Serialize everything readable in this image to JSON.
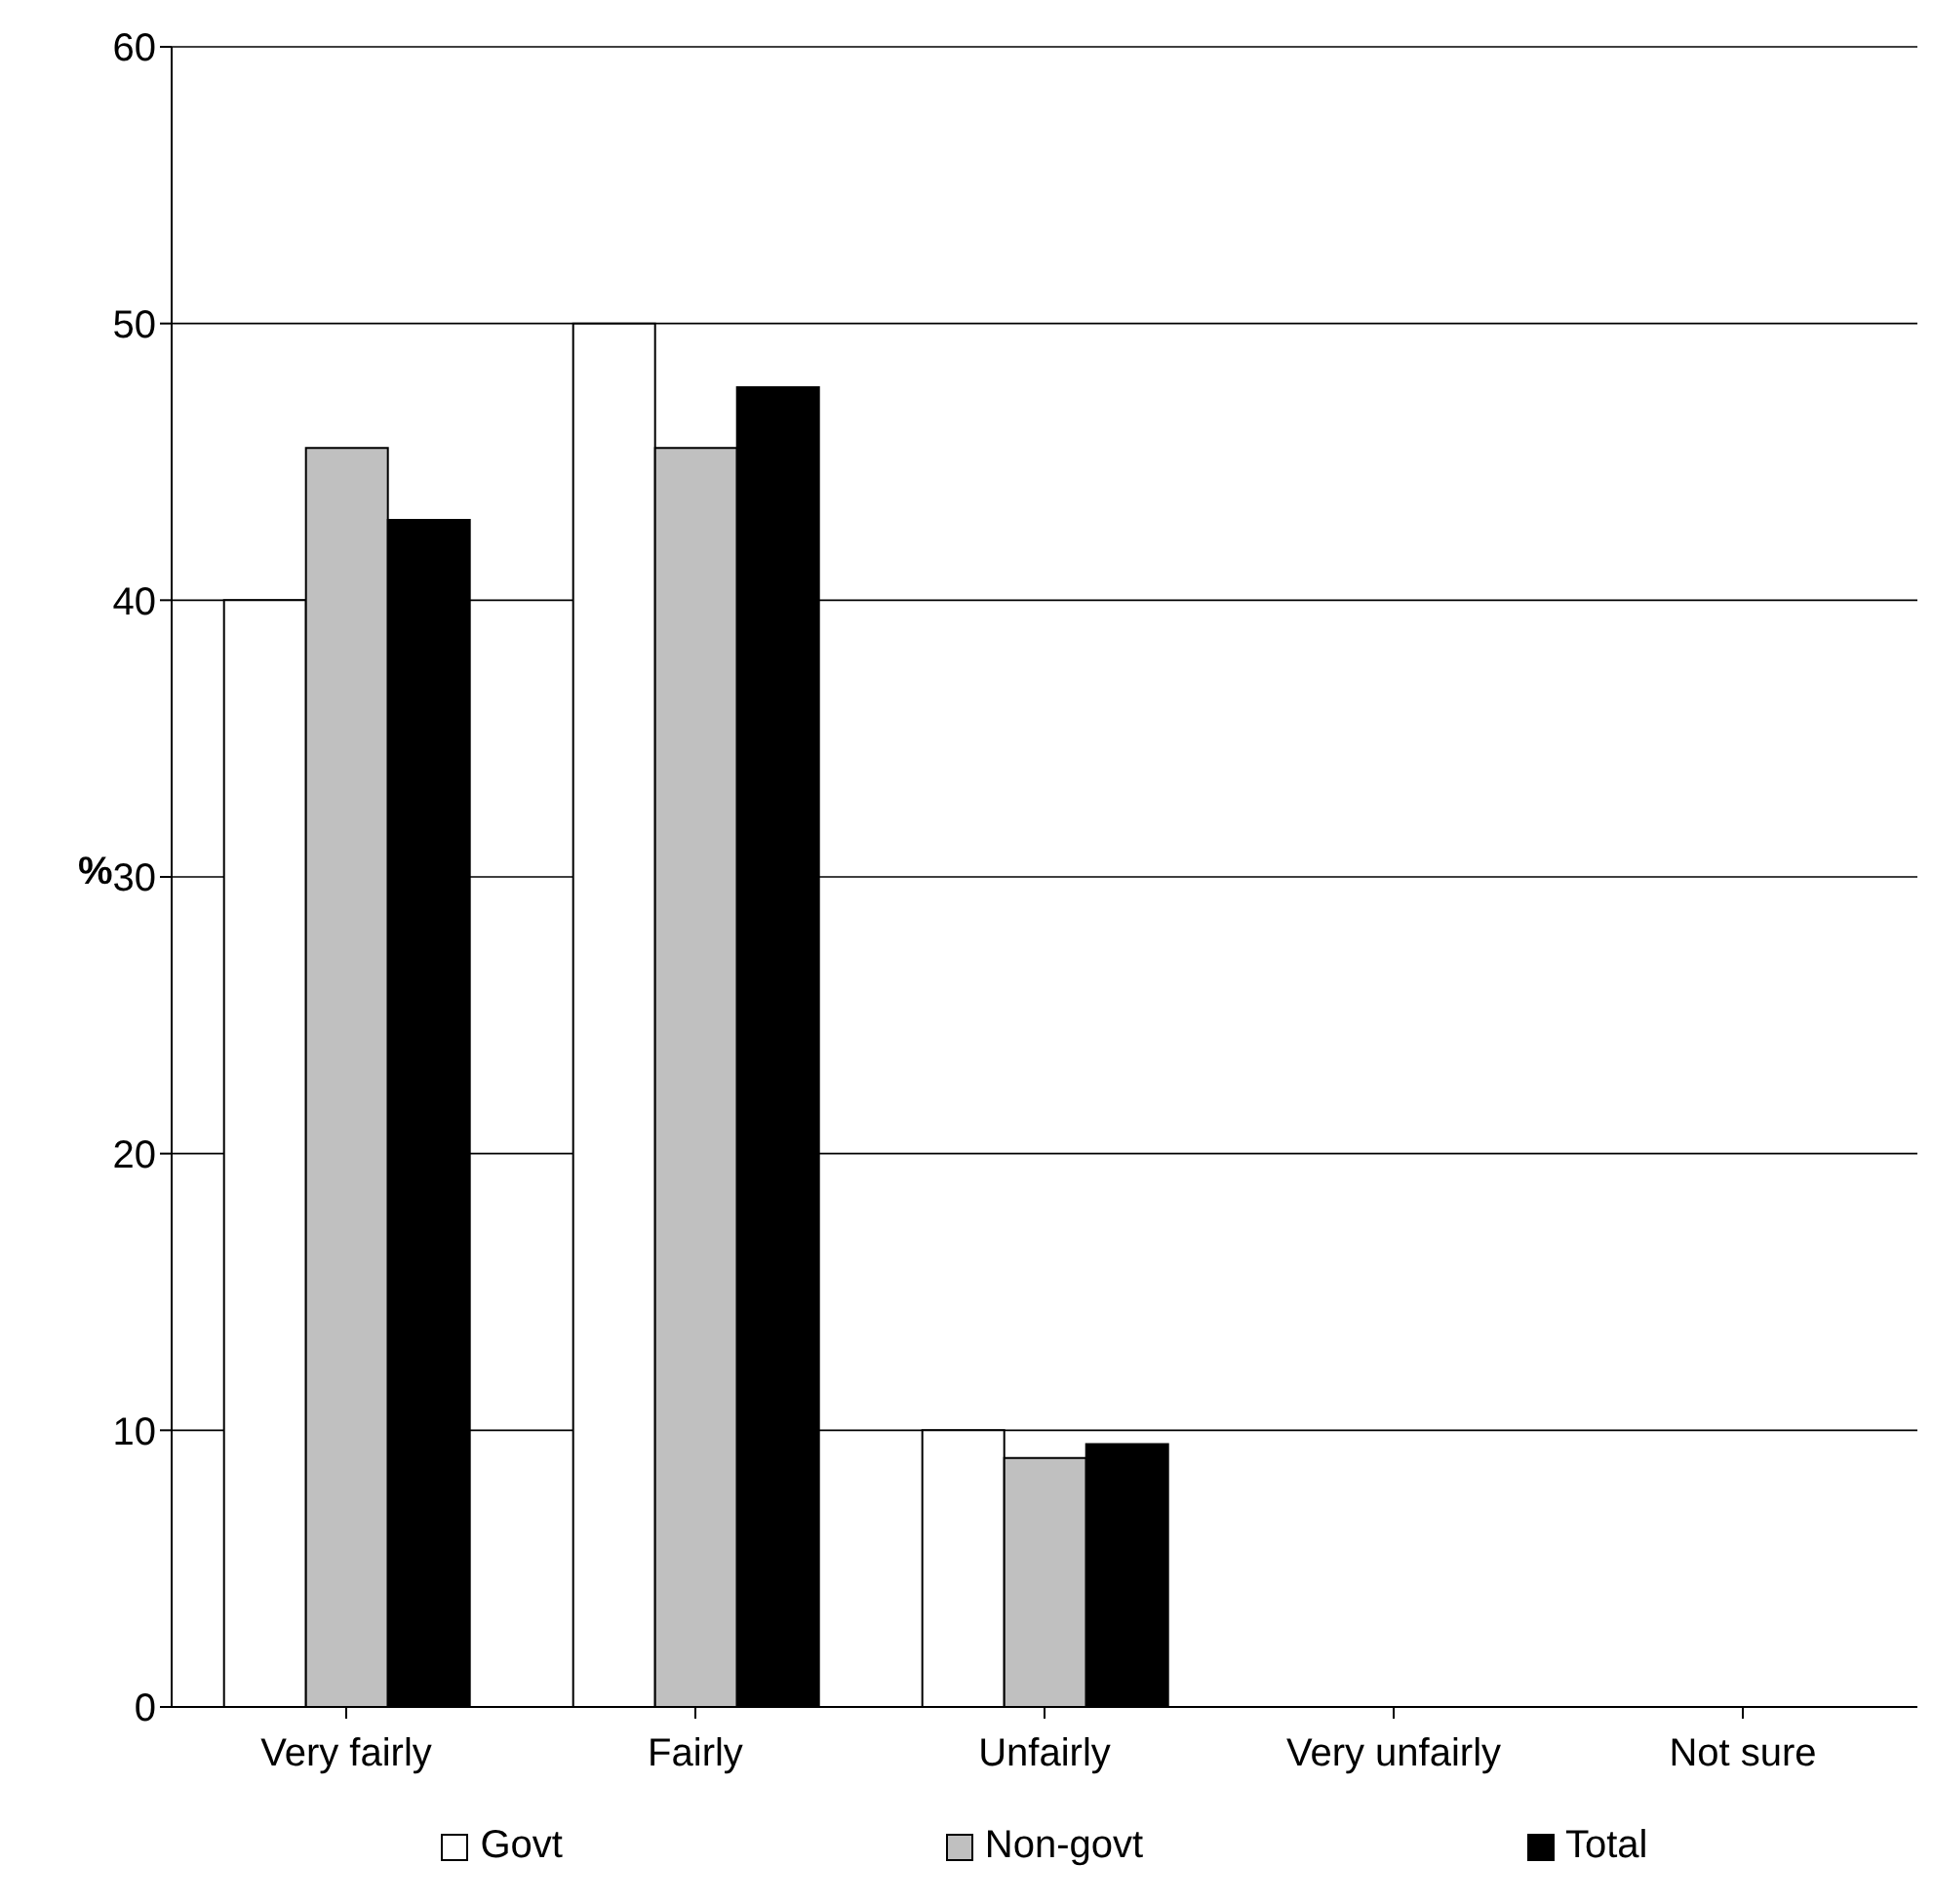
{
  "chart_data": {
    "type": "bar",
    "ylabel": "%",
    "categories": [
      "Very fairly",
      "Fairly",
      "Unfairly",
      "Very unfairly",
      "Not sure"
    ],
    "series": [
      {
        "name": "Govt",
        "color": "#ffffff",
        "values": [
          40,
          50,
          10,
          0,
          0
        ]
      },
      {
        "name": "Non-govt",
        "color": "#c0c0c0",
        "values": [
          45.5,
          45.5,
          9,
          0,
          0
        ]
      },
      {
        "name": "Total",
        "color": "#000000",
        "values": [
          42.9,
          47.7,
          9.5,
          0,
          0
        ]
      }
    ],
    "ylim": [
      0,
      60
    ],
    "yticks": [
      0,
      10,
      20,
      30,
      40,
      50,
      60
    ],
    "grid": "y",
    "legend": "bottom"
  }
}
